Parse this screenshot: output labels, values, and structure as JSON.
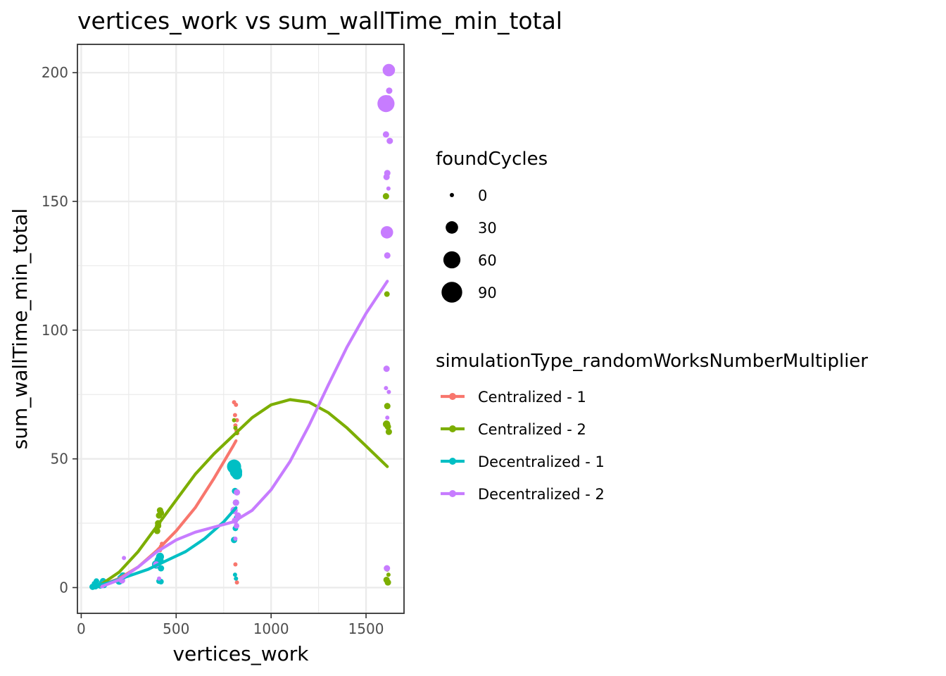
{
  "chart_data": {
    "type": "scatter",
    "title": "vertices_work  vs  sum_wallTime_min_total",
    "xlabel": "vertices_work",
    "ylabel": "sum_wallTime_min_total",
    "xlim": [
      -20,
      1700
    ],
    "ylim": [
      -10,
      211
    ],
    "xticks": [
      0,
      500,
      1000,
      1500
    ],
    "yticks": [
      0,
      50,
      100,
      150,
      200
    ],
    "grid": true,
    "legend_position": "right",
    "size_legend": {
      "title": "foundCycles",
      "entries": [
        {
          "label": "0",
          "value": 0
        },
        {
          "label": "30",
          "value": 30
        },
        {
          "label": "60",
          "value": 60
        },
        {
          "label": "90",
          "value": 90
        }
      ]
    },
    "color_legend": {
      "title": "simulationType_randomWorksNumberMultiplier"
    },
    "series": [
      {
        "name": "Centralized - 1",
        "color": "#F8766D",
        "points": [
          [
            60,
            0.3,
            0
          ],
          [
            70,
            0.6,
            0
          ],
          [
            100,
            1.0,
            0
          ],
          [
            120,
            1.5,
            0
          ],
          [
            210,
            3.5,
            0
          ],
          [
            215,
            4.5,
            0
          ],
          [
            225,
            5.0,
            0
          ],
          [
            410,
            12.0,
            0
          ],
          [
            415,
            14.5,
            0
          ],
          [
            420,
            16.0,
            0
          ],
          [
            425,
            17.0,
            0
          ],
          [
            405,
            9.5,
            0
          ],
          [
            410,
            8.0,
            0
          ],
          [
            805,
            72.0,
            0
          ],
          [
            815,
            71.0,
            0
          ],
          [
            810,
            67.0,
            0
          ],
          [
            820,
            65.0,
            0
          ],
          [
            812,
            63.0,
            0
          ],
          [
            818,
            61.0,
            0
          ],
          [
            822,
            60.0,
            0
          ],
          [
            812,
            9.0,
            0
          ],
          [
            820,
            2.0,
            0
          ],
          [
            815,
            3.5,
            0
          ]
        ],
        "trend": [
          [
            100,
            0.8
          ],
          [
            200,
            3.5
          ],
          [
            300,
            8.0
          ],
          [
            400,
            14.5
          ],
          [
            500,
            22.0
          ],
          [
            600,
            31.0
          ],
          [
            700,
            42.5
          ],
          [
            800,
            55.0
          ],
          [
            815,
            57.0
          ]
        ]
      },
      {
        "name": "Centralized - 2",
        "color": "#7CAE00",
        "points": [
          [
            60,
            0.4,
            0
          ],
          [
            75,
            0.8,
            0
          ],
          [
            105,
            1.4,
            0
          ],
          [
            220,
            4.5,
            0
          ],
          [
            400,
            22.0,
            5
          ],
          [
            405,
            25.0,
            5
          ],
          [
            410,
            28.0,
            5
          ],
          [
            415,
            30.0,
            5
          ],
          [
            420,
            29.0,
            5
          ],
          [
            405,
            24.0,
            5
          ],
          [
            805,
            65.0,
            0
          ],
          [
            812,
            62.0,
            0
          ],
          [
            818,
            60.0,
            0
          ],
          [
            1605,
            152.0,
            5
          ],
          [
            1610,
            114.0,
            3
          ],
          [
            1612,
            70.5,
            5
          ],
          [
            1608,
            63.5,
            8
          ],
          [
            1615,
            62.5,
            5
          ],
          [
            1620,
            60.5,
            5
          ],
          [
            1612,
            7.0,
            0
          ],
          [
            1618,
            5.0,
            0
          ],
          [
            1608,
            3.0,
            5
          ],
          [
            1615,
            2.0,
            5
          ]
        ],
        "trend": [
          [
            100,
            1.0
          ],
          [
            200,
            6.0
          ],
          [
            300,
            14.0
          ],
          [
            400,
            24.0
          ],
          [
            500,
            34.0
          ],
          [
            600,
            44.0
          ],
          [
            700,
            52.0
          ],
          [
            800,
            59.0
          ],
          [
            900,
            66.0
          ],
          [
            1000,
            71.0
          ],
          [
            1100,
            73.0
          ],
          [
            1200,
            72.0
          ],
          [
            1300,
            68.0
          ],
          [
            1400,
            62.0
          ],
          [
            1500,
            55.0
          ],
          [
            1612,
            47.0
          ]
        ]
      },
      {
        "name": "Decentralized - 1",
        "color": "#00BFC4",
        "points": [
          [
            60,
            0.3,
            5
          ],
          [
            70,
            1.5,
            3
          ],
          [
            75,
            0.5,
            5
          ],
          [
            80,
            2.5,
            3
          ],
          [
            100,
            0.8,
            5
          ],
          [
            110,
            1.8,
            5
          ],
          [
            115,
            2.5,
            5
          ],
          [
            120,
            1.0,
            5
          ],
          [
            200,
            2.5,
            8
          ],
          [
            210,
            3.5,
            10
          ],
          [
            220,
            4.5,
            8
          ],
          [
            395,
            9.0,
            12
          ],
          [
            410,
            10.5,
            14
          ],
          [
            415,
            12.0,
            10
          ],
          [
            420,
            7.5,
            5
          ],
          [
            410,
            2.5,
            3
          ],
          [
            420,
            2.3,
            3
          ],
          [
            805,
            47.0,
            40
          ],
          [
            815,
            45.0,
            30
          ],
          [
            820,
            44.0,
            20
          ],
          [
            810,
            37.5,
            5
          ],
          [
            815,
            33.0,
            5
          ],
          [
            820,
            27.0,
            5
          ],
          [
            812,
            23.0,
            3
          ],
          [
            805,
            18.5,
            5
          ],
          [
            810,
            5.0,
            0
          ],
          [
            815,
            3.5,
            0
          ]
        ],
        "trend": [
          [
            60,
            0.3
          ],
          [
            150,
            2.0
          ],
          [
            250,
            4.5
          ],
          [
            350,
            7.0
          ],
          [
            450,
            10.5
          ],
          [
            550,
            14.0
          ],
          [
            650,
            19.0
          ],
          [
            750,
            25.5
          ],
          [
            815,
            31.0
          ]
        ]
      },
      {
        "name": "Decentralized - 2",
        "color": "#C77CFF",
        "points": [
          [
            110,
            0.8,
            3
          ],
          [
            120,
            1.5,
            3
          ],
          [
            215,
            2.8,
            5
          ],
          [
            225,
            11.5,
            0
          ],
          [
            395,
            9.0,
            5
          ],
          [
            410,
            3.5,
            0
          ],
          [
            805,
            30.0,
            8
          ],
          [
            815,
            33.0,
            5
          ],
          [
            820,
            37.0,
            5
          ],
          [
            825,
            28.0,
            5
          ],
          [
            810,
            26.0,
            5
          ],
          [
            818,
            24.0,
            3
          ],
          [
            812,
            19.0,
            0
          ],
          [
            1620,
            201.0,
            30
          ],
          [
            1605,
            188.0,
            60
          ],
          [
            1622,
            193.0,
            5
          ],
          [
            1618,
            190.0,
            5
          ],
          [
            1605,
            176.0,
            5
          ],
          [
            1625,
            173.5,
            5
          ],
          [
            1612,
            161.0,
            5
          ],
          [
            1608,
            159.5,
            5
          ],
          [
            1618,
            155.0,
            0
          ],
          [
            1610,
            138.0,
            30
          ],
          [
            1612,
            129.0,
            5
          ],
          [
            1608,
            85.0,
            5
          ],
          [
            1605,
            77.5,
            0
          ],
          [
            1620,
            76.0,
            0
          ],
          [
            1612,
            66.0,
            0
          ],
          [
            1610,
            7.5,
            5
          ]
        ],
        "trend": [
          [
            110,
            0.5
          ],
          [
            200,
            3.0
          ],
          [
            300,
            8.0
          ],
          [
            400,
            14.0
          ],
          [
            500,
            18.5
          ],
          [
            600,
            21.5
          ],
          [
            700,
            23.5
          ],
          [
            800,
            25.5
          ],
          [
            900,
            30.0
          ],
          [
            1000,
            38.0
          ],
          [
            1100,
            49.0
          ],
          [
            1200,
            63.0
          ],
          [
            1300,
            78.5
          ],
          [
            1400,
            93.5
          ],
          [
            1500,
            106.5
          ],
          [
            1612,
            119.0
          ]
        ]
      }
    ]
  }
}
